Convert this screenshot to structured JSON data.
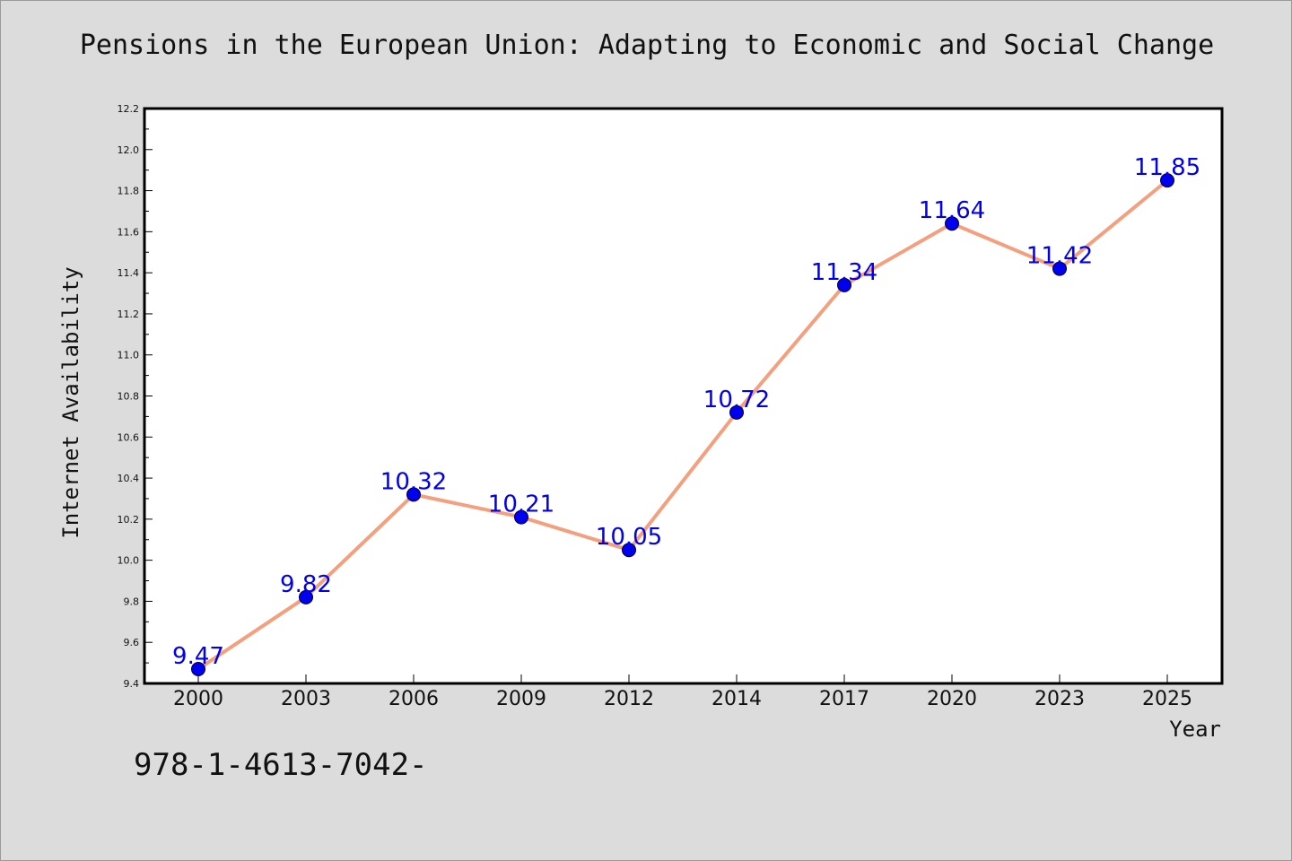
{
  "chart_data": {
    "type": "line",
    "title": "Pensions in the European Union: Adapting to Economic and Social Change",
    "xlabel": "Year",
    "ylabel": "Internet Availability",
    "categories": [
      "2000",
      "2003",
      "2006",
      "2009",
      "2012",
      "2014",
      "2017",
      "2020",
      "2023",
      "2025"
    ],
    "series": [
      {
        "values": [
          9.47,
          9.82,
          10.32,
          10.21,
          10.05,
          10.72,
          11.34,
          11.64,
          11.42,
          11.85
        ]
      }
    ],
    "data_labels": [
      "9.47",
      "9.82",
      "10.32",
      "10.21",
      "10.05",
      "10.72",
      "11.34",
      "11.64",
      "11.42",
      "11.85"
    ],
    "ylim": [
      9.4,
      12.2
    ],
    "y_ticks": [
      "9.4",
      "9.6",
      "9.8",
      "10.0",
      "10.2",
      "10.4",
      "10.6",
      "10.8",
      "11.0",
      "11.2",
      "11.4",
      "11.6",
      "11.8",
      "12.0",
      "12.2"
    ],
    "grid": false,
    "legend": "none",
    "colors": {
      "line": "#f4a07f",
      "marker": "#0000ee",
      "label": "#0000ee",
      "background": "#dcdcdc",
      "plot_background": "#ffffff"
    }
  },
  "footer": {
    "text": "978-1-4613-7042-"
  }
}
